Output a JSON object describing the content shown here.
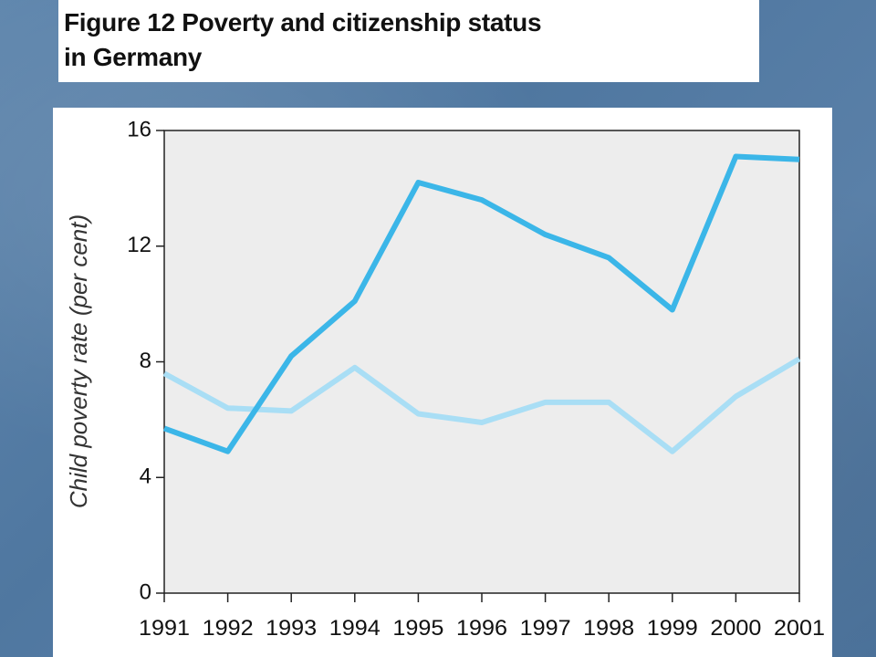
{
  "slide": {
    "title_line1": "Figure 12  Poverty and citizenship status",
    "title_line2": "in Germany"
  },
  "chart_data": {
    "type": "line",
    "title": "Figure 12  Poverty and citizenship status in Germany",
    "xlabel": "",
    "ylabel": "Child poverty rate (per cent)",
    "categories": [
      "1991",
      "1992",
      "1993",
      "1994",
      "1995",
      "1996",
      "1997",
      "1998",
      "1999",
      "2000",
      "2001"
    ],
    "ylim": [
      0,
      16
    ],
    "yticks": [
      0,
      4,
      8,
      12,
      16
    ],
    "grid": false,
    "series": [
      {
        "color": "#3bb6e8",
        "values": [
          5.7,
          4.9,
          8.2,
          10.1,
          14.2,
          13.6,
          12.4,
          11.6,
          9.8,
          15.1,
          15.0
        ]
      },
      {
        "color": "#a9def5",
        "values": [
          7.6,
          6.4,
          6.3,
          7.8,
          6.2,
          5.9,
          6.6,
          6.6,
          4.9,
          6.8,
          8.1
        ]
      }
    ]
  }
}
